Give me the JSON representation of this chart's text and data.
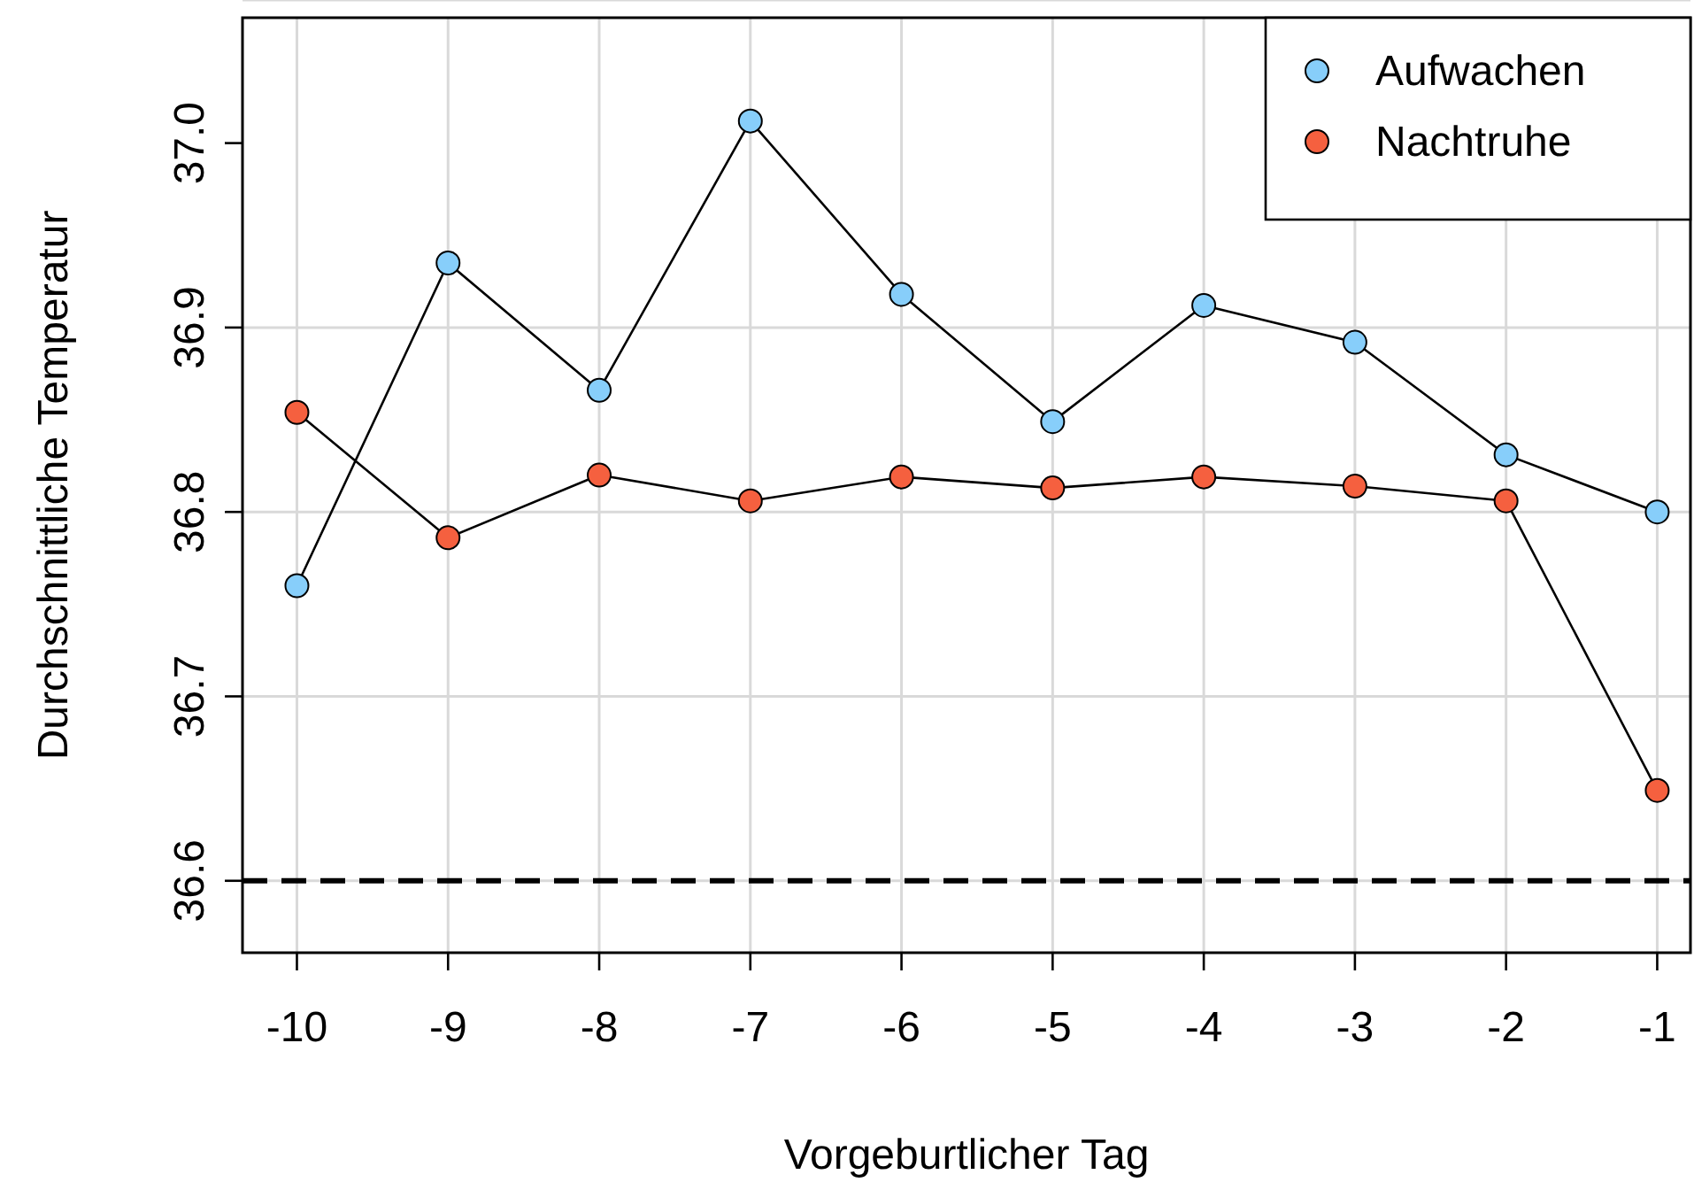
{
  "chart_data": {
    "type": "line",
    "xlabel": "Vorgeburtlicher Tag",
    "ylabel": "Durchschnittliche Temperatur",
    "x": [
      -10,
      -9,
      -8,
      -7,
      -6,
      -5,
      -4,
      -3,
      -2,
      -1
    ],
    "series": [
      {
        "name": "Aufwachen",
        "color": "#87cefa",
        "values": [
          36.76,
          36.935,
          36.866,
          37.012,
          36.918,
          36.849,
          36.912,
          36.892,
          36.831,
          36.8
        ]
      },
      {
        "name": "Nachtruhe",
        "color": "#f5603f",
        "values": [
          36.854,
          36.786,
          36.82,
          36.806,
          36.819,
          36.813,
          36.819,
          36.814,
          36.806,
          36.649
        ]
      }
    ],
    "xlim": [
      -10.36,
      -0.78
    ],
    "ylim": [
      36.561,
      37.068
    ],
    "xticks": [
      -10,
      -9,
      -8,
      -7,
      -6,
      -5,
      -4,
      -3,
      -2,
      -1
    ],
    "yticks": [
      36.6,
      36.7,
      36.8,
      36.9,
      {
        "value": 37,
        "label": "37.0"
      }
    ],
    "ref_lines": [
      {
        "axis": "y",
        "value": 36.6,
        "line_style": "dashed",
        "color": "#000000"
      }
    ],
    "grid": true,
    "legend": "top right",
    "marker": "circle",
    "line_style": "solid"
  }
}
